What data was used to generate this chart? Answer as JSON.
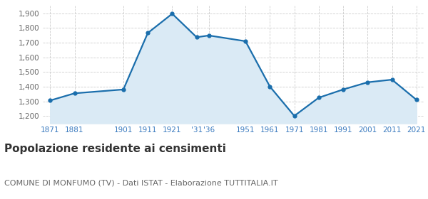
{
  "years": [
    1871,
    1881,
    1901,
    1911,
    1921,
    1931,
    1936,
    1951,
    1961,
    1971,
    1981,
    1991,
    2001,
    2011,
    2021
  ],
  "population": [
    1306,
    1355,
    1381,
    1766,
    1897,
    1737,
    1749,
    1710,
    1401,
    1201,
    1325,
    1381,
    1430,
    1448,
    1311
  ],
  "x_tick_labels": [
    "1871",
    "1881",
    "1901",
    "1911",
    "1921",
    "'31",
    "'36",
    "1951",
    "1961",
    "1971",
    "1981",
    "1991",
    "2001",
    "2011",
    "2021"
  ],
  "ylim": [
    1150,
    1950
  ],
  "yticks": [
    1200,
    1300,
    1400,
    1500,
    1600,
    1700,
    1800,
    1900
  ],
  "line_color": "#1a6eac",
  "fill_color": "#daeaf5",
  "marker": "o",
  "marker_size": 3.5,
  "line_width": 1.6,
  "title": "Popolazione residente ai censimenti",
  "subtitle": "COMUNE DI MONFUMO (TV) - Dati ISTAT - Elaborazione TUTTITALIA.IT",
  "title_fontsize": 11,
  "subtitle_fontsize": 8,
  "bg_color": "#ffffff",
  "grid_color": "#cccccc",
  "tick_label_color": "#3a7abf",
  "ytick_label_color": "#666666",
  "title_color": "#333333",
  "subtitle_color": "#666666"
}
